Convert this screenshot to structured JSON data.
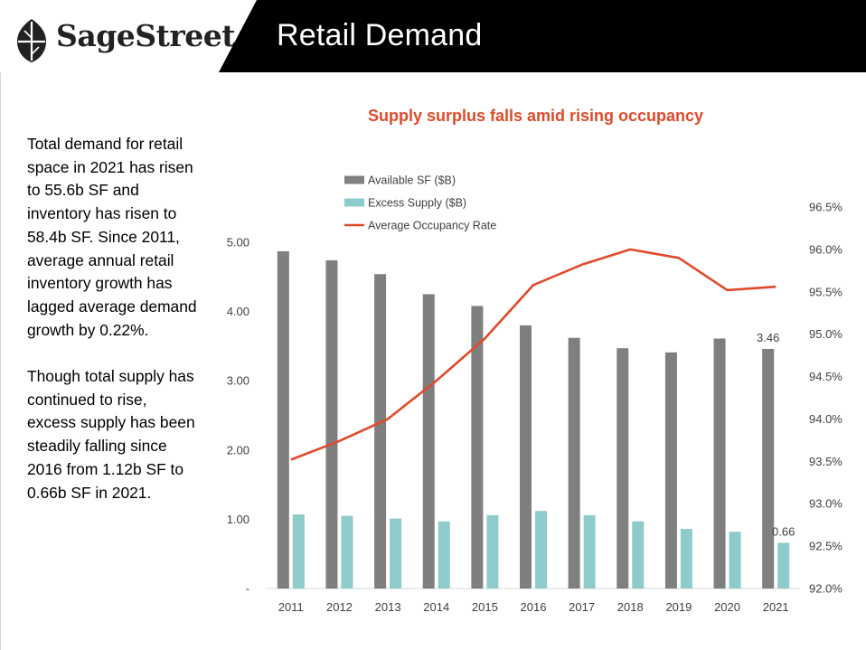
{
  "header": {
    "brand": "SageStreet",
    "title": "Retail Demand"
  },
  "body_text": {
    "paragraph1": "Total demand for retail space in 2021 has risen to 55.6b SF and inventory has risen to 58.4b SF. Since 2011, average annual retail inventory growth has lagged average demand growth by 0.22%.",
    "paragraph2": "Though total supply has continued to rise, excess supply has been steadily falling since 2016 from 1.12b SF to 0.66b SF in 2021."
  },
  "colors": {
    "available": "#7f7f7f",
    "excess": "#8ecbcb",
    "occupancy": "#e04a2a",
    "title": "#e04a2a"
  },
  "chart_data": {
    "type": "bar",
    "title": "Supply surplus falls amid rising occupancy",
    "categories": [
      "2011",
      "2012",
      "2013",
      "2014",
      "2015",
      "2016",
      "2017",
      "2018",
      "2019",
      "2020",
      "2021"
    ],
    "series": [
      {
        "name": "Available SF ($B)",
        "type": "bar",
        "axis": "left",
        "values": [
          4.87,
          4.74,
          4.54,
          4.25,
          4.08,
          3.8,
          3.62,
          3.47,
          3.41,
          3.61,
          3.46
        ]
      },
      {
        "name": "Excess Supply ($B)",
        "type": "bar",
        "axis": "left",
        "values": [
          1.07,
          1.05,
          1.01,
          0.97,
          1.06,
          1.12,
          1.06,
          0.97,
          0.86,
          0.82,
          0.66
        ]
      },
      {
        "name": "Average Occupancy Rate",
        "type": "line",
        "axis": "right",
        "values": [
          93.52,
          93.74,
          94.0,
          94.45,
          94.95,
          95.58,
          95.82,
          96.0,
          95.9,
          95.52,
          95.56
        ]
      }
    ],
    "left_axis": {
      "ticks": [
        "-",
        "1.00",
        "2.00",
        "3.00",
        "4.00",
        "5.00"
      ],
      "tick_values": [
        0,
        1,
        2,
        3,
        4,
        5
      ],
      "ylim": [
        0,
        5.0
      ]
    },
    "right_axis": {
      "ticks": [
        "92.0%",
        "92.5%",
        "93.0%",
        "93.5%",
        "94.0%",
        "94.5%",
        "95.0%",
        "95.5%",
        "96.0%",
        "96.5%"
      ],
      "tick_values": [
        92.0,
        92.5,
        93.0,
        93.5,
        94.0,
        94.5,
        95.0,
        95.5,
        96.0,
        96.5
      ],
      "ylim": [
        92.0,
        96.5
      ]
    },
    "data_labels": [
      {
        "series": "Available SF ($B)",
        "category": "2021",
        "text": "3.46"
      },
      {
        "series": "Excess Supply ($B)",
        "category": "2021",
        "text": "0.66"
      }
    ],
    "legend_position": "top-left",
    "grid": false
  }
}
